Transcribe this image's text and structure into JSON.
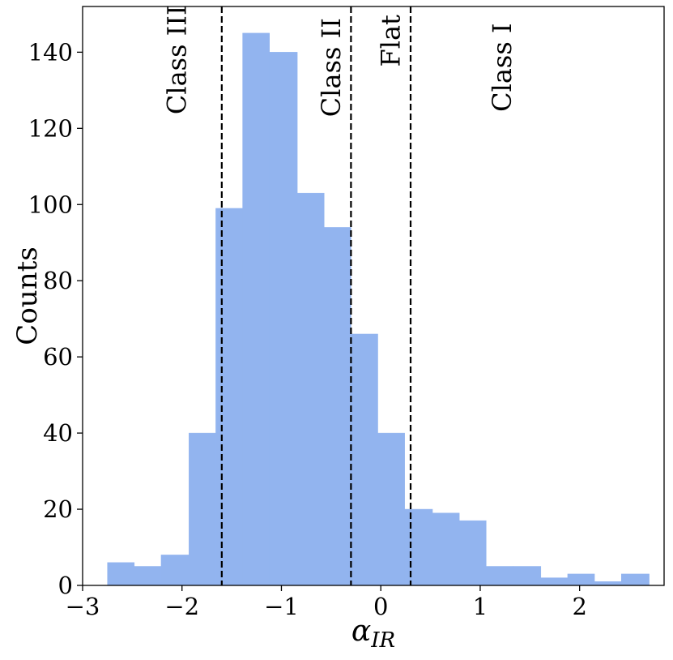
{
  "chart_data": {
    "type": "histogram",
    "xlabel": "α",
    "xlabel_sub": "IR",
    "ylabel": "Counts",
    "xlim": [
      -3.0,
      2.85
    ],
    "ylim": [
      0,
      152
    ],
    "x_ticks": [
      -3,
      -2,
      -1,
      0,
      1,
      2
    ],
    "x_tick_labels": [
      "−3",
      "−2",
      "−1",
      "0",
      "1",
      "2"
    ],
    "y_ticks": [
      0,
      20,
      40,
      60,
      80,
      100,
      120,
      140
    ],
    "y_tick_labels": [
      "0",
      "20",
      "40",
      "60",
      "80",
      "100",
      "120",
      "140"
    ],
    "bar_color": "#92b4ef",
    "bins": [
      {
        "x0": -2.75,
        "x1": -2.48,
        "count": 6
      },
      {
        "x0": -2.48,
        "x1": -2.21,
        "count": 5
      },
      {
        "x0": -2.21,
        "x1": -1.93,
        "count": 8
      },
      {
        "x0": -1.93,
        "x1": -1.66,
        "count": 40
      },
      {
        "x0": -1.66,
        "x1": -1.39,
        "count": 99
      },
      {
        "x0": -1.39,
        "x1": -1.12,
        "count": 145
      },
      {
        "x0": -1.12,
        "x1": -0.84,
        "count": 140
      },
      {
        "x0": -0.84,
        "x1": -0.57,
        "count": 103
      },
      {
        "x0": -0.57,
        "x1": -0.3,
        "count": 94
      },
      {
        "x0": -0.3,
        "x1": -0.03,
        "count": 66
      },
      {
        "x0": -0.03,
        "x1": 0.24,
        "count": 40
      },
      {
        "x0": 0.24,
        "x1": 0.52,
        "count": 20
      },
      {
        "x0": 0.52,
        "x1": 0.79,
        "count": 19
      },
      {
        "x0": 0.79,
        "x1": 1.06,
        "count": 17
      },
      {
        "x0": 1.06,
        "x1": 1.33,
        "count": 5
      },
      {
        "x0": 1.33,
        "x1": 1.61,
        "count": 5
      },
      {
        "x0": 1.61,
        "x1": 1.88,
        "count": 2
      },
      {
        "x0": 1.88,
        "x1": 2.15,
        "count": 3
      },
      {
        "x0": 2.15,
        "x1": 2.42,
        "count": 1
      },
      {
        "x0": 2.42,
        "x1": 2.7,
        "count": 3
      }
    ],
    "boundaries": [
      -1.6,
      -0.3,
      0.3
    ],
    "class_labels": [
      {
        "text": "Class III",
        "x": -2.05,
        "y": 138
      },
      {
        "text": "Class II",
        "x": -0.5,
        "y": 136
      },
      {
        "text": "Flat",
        "x": 0.1,
        "y": 143
      },
      {
        "text": "Class I",
        "x": 1.22,
        "y": 136
      }
    ],
    "grid": false
  }
}
